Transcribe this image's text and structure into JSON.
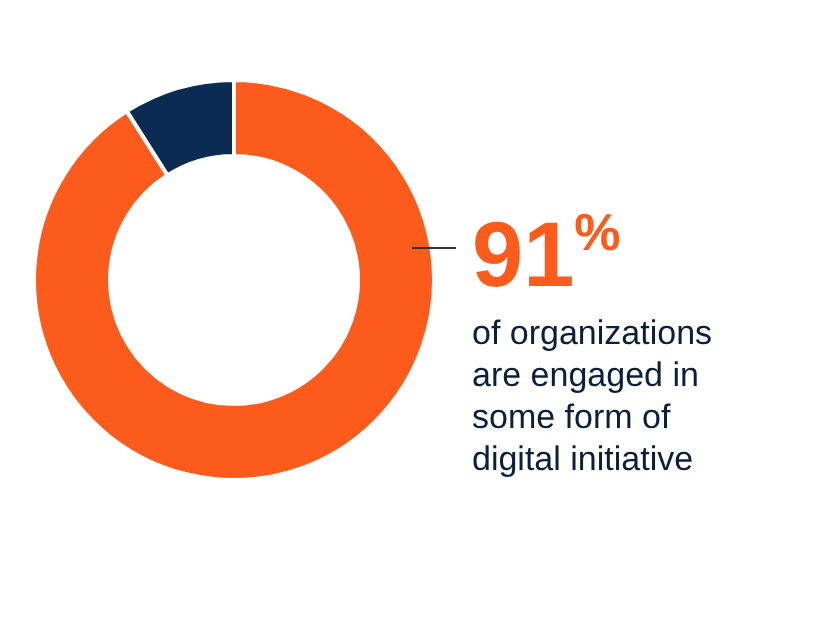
{
  "chart_data": {
    "type": "donut",
    "categories": [
      null,
      null
    ],
    "values": [
      91,
      9
    ],
    "colors": [
      "#fc5b1c",
      "#0b2a54"
    ],
    "value_labels": [
      "91$^{%}$",
      null
    ],
    "annotations": [
      "of organizations are engaged in some form of digital initiative"
    ]
  }
}
